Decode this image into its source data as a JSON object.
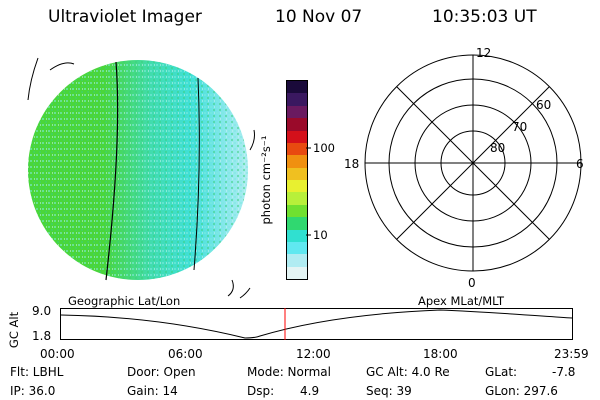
{
  "header": {
    "instrument": "Ultraviolet Imager",
    "date": "10 Nov 07",
    "time": "10:35:03 UT"
  },
  "colorbar": {
    "unit_label": "photon cm⁻²s⁻¹",
    "ticks": [
      "100",
      "10"
    ],
    "colors": [
      "#1a0a3a",
      "#3a1860",
      "#6a1a60",
      "#9a0a2a",
      "#d4101a",
      "#e84a10",
      "#f09010",
      "#f0c020",
      "#e8f030",
      "#b8f03a",
      "#70e030",
      "#30d870",
      "#30e0d0",
      "#60e8f0",
      "#b0ecf2",
      "#e4f4f4"
    ]
  },
  "globe": {
    "colors": {
      "green": "#4ad63a",
      "cyan": "#40e0d8",
      "light": "#bfeff2"
    }
  },
  "polar": {
    "hour_labels": {
      "top": "12",
      "left": "18",
      "right": "6",
      "bottom": "0"
    },
    "lat_labels": [
      "60",
      "70",
      "80"
    ]
  },
  "timeline": {
    "left_title": "Geographic Lat/Lon",
    "right_title": "Apex MLat/MLT",
    "y_axis_label": "GC Alt",
    "y_ticks": [
      "9.0",
      "1.8"
    ],
    "x_ticks": [
      "00:00",
      "06:00",
      "12:00",
      "18:00",
      "23:59"
    ],
    "current_time_marker_color": "#ff0000"
  },
  "footer": {
    "flt": "Flt: LBHL",
    "ip": "IP: 36.0",
    "door": "Door: Open",
    "gain": "Gain: 14",
    "mode": "Mode: Normal",
    "dsp_label": "Dsp:",
    "dsp_value": "4.9",
    "gc_alt": "GC Alt: 4.0 Re",
    "seq": "Seq: 39",
    "glat_label": "GLat:",
    "glat_value": "-7.8",
    "glon": "GLon: 297.6"
  }
}
